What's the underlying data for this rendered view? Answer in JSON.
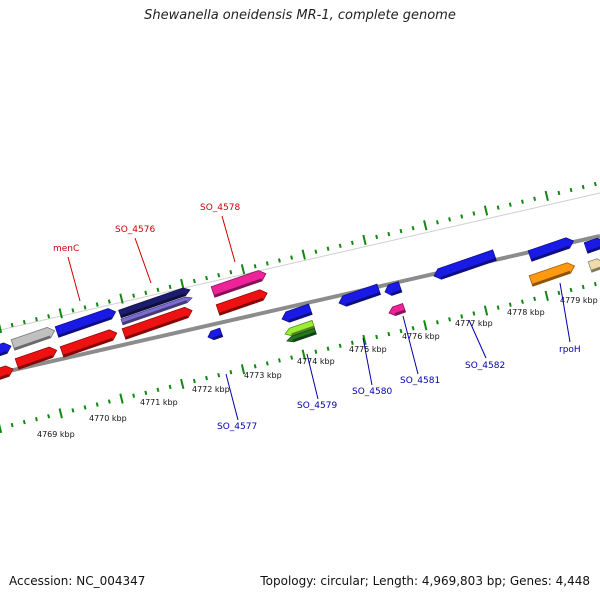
{
  "title": "Shewanella oneidensis MR-1, complete genome",
  "accession": "Accession: NC_004347",
  "summary": "Topology: circular; Length: 4,969,803 bp; Genes: 4,448",
  "colors": {
    "forward_label": "#cc0000",
    "reverse_label": "#0000aa",
    "tick": "#118811",
    "backbone": "#8c8c8c",
    "blue": "#1a1ae6",
    "red": "#ee1111",
    "pink": "#ee2299",
    "gray": "#c0c0c0",
    "navy": "#1c1c6e",
    "lavender": "#7c6cd6",
    "lime": "#99ee33",
    "green": "#227722",
    "orange": "#ff9911",
    "khaki": "#eeddaa"
  },
  "kbp_labels": [
    "4769 kbp",
    "4770 kbp",
    "4771 kbp",
    "4772 kbp",
    "4773 kbp",
    "4774 kbp",
    "4775 kbp",
    "4776 kbp",
    "4777 kbp",
    "4778 kbp",
    "4779 kbp"
  ],
  "forward_gene_labels": [
    "menC",
    "SO_4576",
    "SO_4578"
  ],
  "reverse_gene_labels": [
    "SO_4577",
    "SO_4579",
    "SO_4580",
    "SO_4581",
    "SO_4582",
    "rpoH"
  ]
}
